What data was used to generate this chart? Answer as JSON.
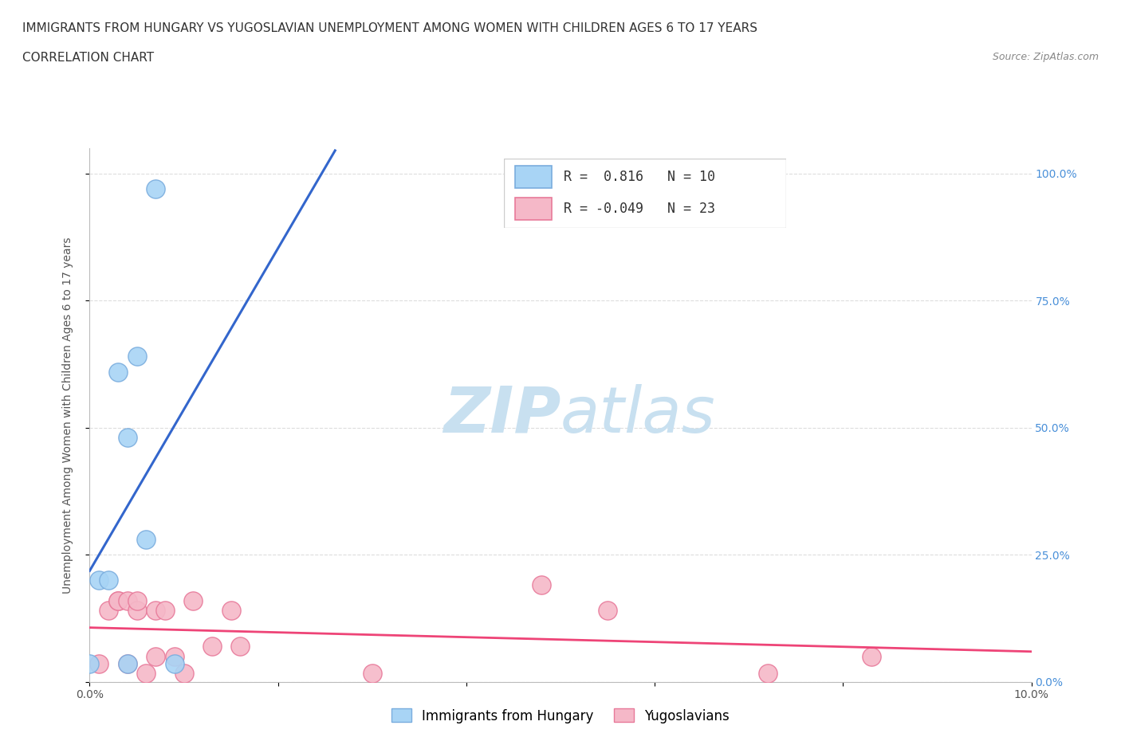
{
  "title_line1": "IMMIGRANTS FROM HUNGARY VS YUGOSLAVIAN UNEMPLOYMENT AMONG WOMEN WITH CHILDREN AGES 6 TO 17 YEARS",
  "title_line2": "CORRELATION CHART",
  "source_text": "Source: ZipAtlas.com",
  "ylabel": "Unemployment Among Women with Children Ages 6 to 17 years",
  "xlim": [
    0.0,
    0.1
  ],
  "ylim": [
    0.0,
    1.05
  ],
  "xticks": [
    0.0,
    0.02,
    0.04,
    0.06,
    0.08,
    0.1
  ],
  "yticks": [
    0.0,
    0.25,
    0.5,
    0.75,
    1.0
  ],
  "right_ytick_labels": [
    "0.0%",
    "25.0%",
    "50.0%",
    "75.0%",
    "100.0%"
  ],
  "xtick_labels": [
    "0.0%",
    "",
    "",
    "",
    "",
    "10.0%"
  ],
  "hungary_R": 0.816,
  "hungary_N": 10,
  "yugo_R": -0.049,
  "yugo_N": 23,
  "hungary_color": "#A8D4F5",
  "hungary_edge_color": "#7AADDE",
  "yugo_color": "#F5B8C8",
  "yugo_edge_color": "#E87A9A",
  "trend_hungary_color": "#3366CC",
  "trend_yugo_color": "#EE4477",
  "watermark_zip_color": "#C8E0F0",
  "watermark_atlas_color": "#C8E0F0",
  "background_color": "#FFFFFF",
  "grid_color": "#DDDDDD",
  "hungary_x": [
    0.0,
    0.001,
    0.002,
    0.003,
    0.004,
    0.004,
    0.005,
    0.006,
    0.007,
    0.009
  ],
  "hungary_y": [
    0.035,
    0.2,
    0.2,
    0.61,
    0.48,
    0.035,
    0.64,
    0.28,
    0.97,
    0.035
  ],
  "yugo_x": [
    0.001,
    0.002,
    0.003,
    0.003,
    0.004,
    0.004,
    0.005,
    0.005,
    0.006,
    0.007,
    0.007,
    0.008,
    0.009,
    0.01,
    0.011,
    0.013,
    0.015,
    0.016,
    0.03,
    0.048,
    0.055,
    0.072,
    0.083
  ],
  "yugo_y": [
    0.035,
    0.14,
    0.16,
    0.16,
    0.16,
    0.035,
    0.14,
    0.16,
    0.016,
    0.05,
    0.14,
    0.14,
    0.05,
    0.016,
    0.16,
    0.07,
    0.14,
    0.07,
    0.016,
    0.19,
    0.14,
    0.016,
    0.05
  ],
  "title_fontsize": 11,
  "subtitle_fontsize": 11,
  "axis_label_fontsize": 10,
  "tick_fontsize": 10,
  "legend_fontsize": 12,
  "source_fontsize": 9,
  "right_ytick_color": "#4A90D9",
  "left_ytick_color": "#555555"
}
